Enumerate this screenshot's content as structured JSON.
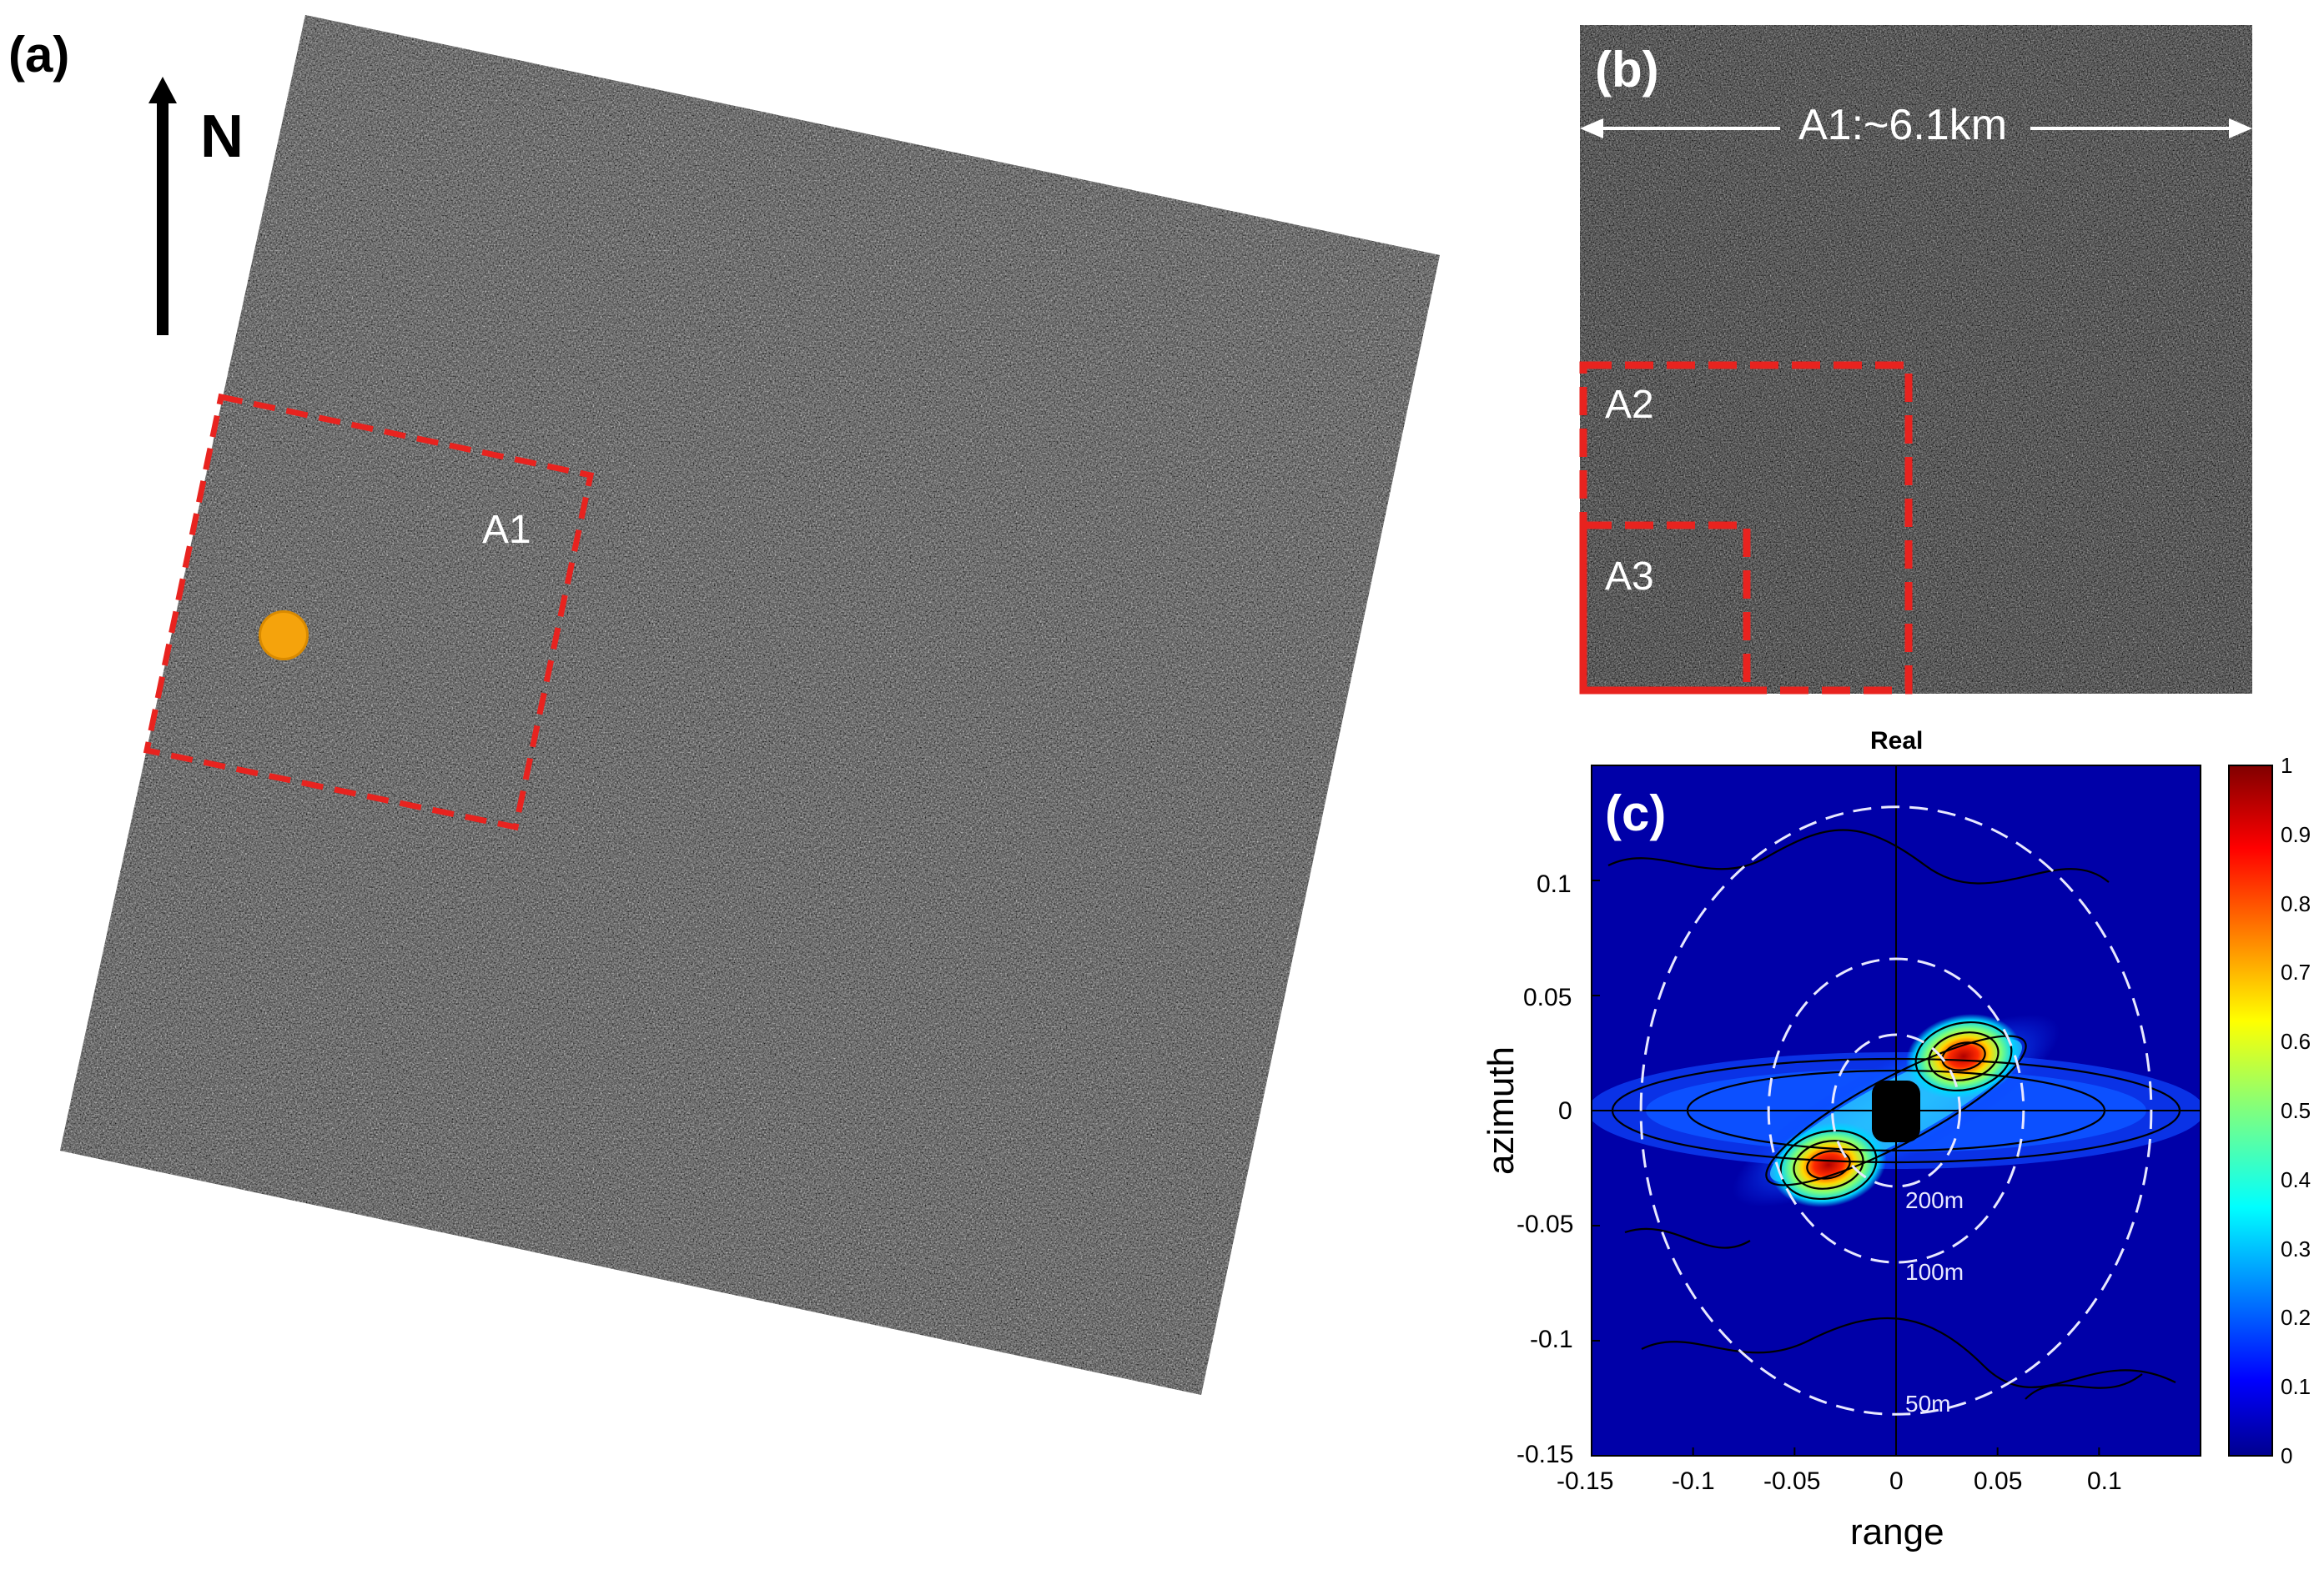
{
  "panel_a": {
    "label": "(a)",
    "north_label": "N",
    "region_label": "A1"
  },
  "panel_b": {
    "label": "(b)",
    "scale_text": "A1:~6.1km",
    "region_labels": [
      "A2",
      "A3"
    ]
  },
  "panel_c": {
    "label": "(c)",
    "chart_data": {
      "type": "heatmap",
      "title": "Real",
      "xlabel": "range",
      "ylabel": "azimuth",
      "xlim": [
        -0.15,
        0.15
      ],
      "ylim": [
        -0.15,
        0.15
      ],
      "x_ticks": [
        "-0.15",
        "-0.1",
        "-0.05",
        "0",
        "0.05",
        "0.1"
      ],
      "x_tick_values": [
        -0.15,
        -0.1,
        -0.05,
        0,
        0.05,
        0.1
      ],
      "y_ticks": [
        "0.1",
        "0.05",
        "0",
        "-0.05",
        "-0.1",
        "-0.15"
      ],
      "y_tick_values": [
        0.1,
        0.05,
        0,
        -0.05,
        -0.1,
        -0.15
      ],
      "colorbar_ticks": [
        "1",
        "0.9",
        "0.8",
        "0.7",
        "0.6",
        "0.5",
        "0.4",
        "0.3",
        "0.2",
        "0.1",
        "0"
      ],
      "colorbar_values": [
        1,
        0.9,
        0.8,
        0.7,
        0.6,
        0.5,
        0.4,
        0.3,
        0.2,
        0.1,
        0
      ],
      "colormap": "jet",
      "wavelength_circles": [
        {
          "label": "200m",
          "radius": 0.0314
        },
        {
          "label": "100m",
          "radius": 0.0628
        },
        {
          "label": "50m",
          "radius": 0.1257
        }
      ],
      "peaks": [
        {
          "x": 0.033,
          "y": 0.025,
          "value": 1.0
        },
        {
          "x": -0.033,
          "y": -0.025,
          "value": 1.0
        }
      ],
      "grid": false
    }
  },
  "colors": {
    "dashed_box": "#e8231f",
    "marker": "#f5a30c",
    "colormap_low": "#00008f",
    "colormap_high": "#800000"
  }
}
